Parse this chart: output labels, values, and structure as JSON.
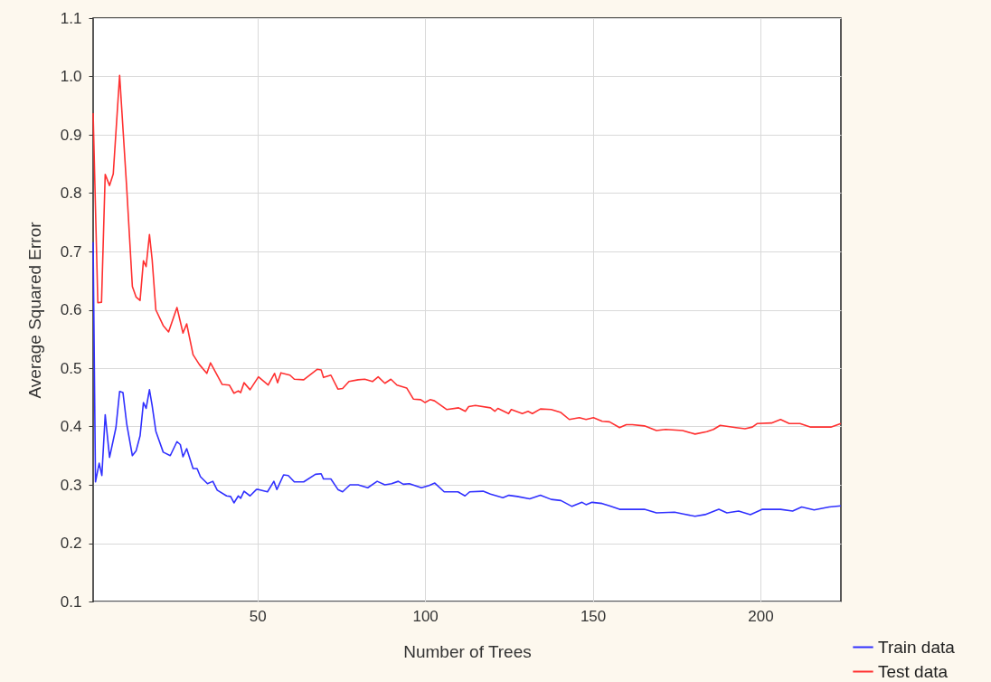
{
  "chart_data": {
    "type": "line",
    "xlabel": "Number of Trees",
    "ylabel": "Average Squared Error",
    "xlim": [
      1,
      224
    ],
    "xticks": [
      50,
      100,
      150,
      200
    ],
    "ylim": [
      0.1,
      1.1
    ],
    "yticks": [
      0.1,
      0.2,
      0.3,
      0.4,
      0.5,
      0.6,
      0.7,
      0.8,
      0.9,
      {
        "value": 1,
        "label": "1.0"
      },
      1.1
    ],
    "grid": true,
    "legend": "bottom right",
    "line_style": "solid",
    "series": [
      {
        "name": "Train data",
        "color": "#3030ff",
        "x": [
          1,
          1.7,
          2.8,
          3.6,
          4.6,
          5.9,
          7.8,
          8.9,
          9.9,
          11,
          12.7,
          13.8,
          15,
          16,
          16.8,
          17.8,
          18.6,
          19.7,
          20.6,
          21.9,
          24,
          26,
          27,
          27.8,
          28.9,
          30.8,
          32,
          33,
          35.1,
          36.7,
          38,
          40.8,
          42,
          43,
          44.3,
          45,
          46,
          47.8,
          49.7,
          50.3,
          53,
          54.9,
          55.8,
          57.8,
          59.2,
          61,
          63.8,
          67.3,
          69,
          69.7,
          71.9,
          74,
          75.4,
          77.6,
          80,
          82.9,
          85.7,
          88,
          90,
          92,
          93.5,
          95.3,
          98.9,
          101.2,
          102.9,
          105.7,
          109.8,
          111.9,
          113.3,
          117.3,
          119.5,
          123.2,
          125,
          127.5,
          131.2,
          134.4,
          137.6,
          140.5,
          143.8,
          146.8,
          148,
          149.8,
          152.8,
          155,
          158,
          161.8,
          165.4,
          169,
          174.4,
          177,
          180.5,
          183.5,
          187.6,
          190,
          193.5,
          197,
          200.6,
          206,
          209.6,
          212.3,
          216,
          220.5,
          224
        ],
        "values": [
          0.716,
          0.305,
          0.337,
          0.316,
          0.42,
          0.347,
          0.398,
          0.46,
          0.458,
          0.405,
          0.35,
          0.358,
          0.384,
          0.441,
          0.431,
          0.463,
          0.436,
          0.392,
          0.377,
          0.356,
          0.35,
          0.374,
          0.369,
          0.348,
          0.362,
          0.328,
          0.328,
          0.314,
          0.302,
          0.306,
          0.291,
          0.281,
          0.28,
          0.269,
          0.281,
          0.277,
          0.289,
          0.281,
          0.292,
          0.292,
          0.288,
          0.306,
          0.292,
          0.317,
          0.316,
          0.305,
          0.305,
          0.318,
          0.319,
          0.31,
          0.31,
          0.292,
          0.288,
          0.3,
          0.3,
          0.295,
          0.306,
          0.3,
          0.302,
          0.306,
          0.301,
          0.302,
          0.295,
          0.299,
          0.303,
          0.288,
          0.288,
          0.281,
          0.288,
          0.289,
          0.284,
          0.278,
          0.282,
          0.28,
          0.276,
          0.282,
          0.275,
          0.273,
          0.263,
          0.27,
          0.266,
          0.27,
          0.268,
          0.264,
          0.258,
          0.258,
          0.258,
          0.252,
          0.253,
          0.25,
          0.246,
          0.249,
          0.258,
          0.252,
          0.255,
          0.249,
          0.258,
          0.258,
          0.255,
          0.262,
          0.257,
          0.262,
          0.264
        ]
      },
      {
        "name": "Test data",
        "color": "#ff3030",
        "x": [
          1,
          2.4,
          3.5,
          4.6,
          5.9,
          7,
          8.9,
          11,
          12.7,
          13.8,
          15,
          16,
          16.8,
          17.8,
          18.6,
          19.7,
          21.9,
          23.5,
          26,
          27.8,
          28.9,
          30.8,
          32.7,
          34.9,
          36,
          39.5,
          41.6,
          43,
          44.3,
          45,
          46,
          47.8,
          50.3,
          53.2,
          55.1,
          56,
          57,
          59.7,
          61,
          63.8,
          67.8,
          69,
          69.7,
          71.9,
          74,
          75.4,
          77.3,
          80,
          82,
          84.3,
          86,
          88,
          89.8,
          91.6,
          94.5,
          96.5,
          98.7,
          100,
          101.5,
          102.8,
          106.5,
          110,
          112,
          113,
          115,
          119.5,
          120.8,
          121.7,
          124.9,
          125.7,
          129,
          130.7,
          132,
          134.4,
          137.6,
          140.5,
          143,
          146,
          148,
          150.2,
          152.8,
          155,
          158,
          160,
          161.8,
          165.4,
          169,
          171.7,
          176.8,
          180.5,
          184,
          186,
          188,
          192.7,
          195.4,
          197.6,
          199,
          203.3,
          206,
          208.6,
          211.8,
          215,
          221,
          224
        ],
        "values": [
          0.937,
          0.612,
          0.613,
          0.832,
          0.813,
          0.833,
          1.002,
          0.81,
          0.64,
          0.622,
          0.616,
          0.684,
          0.674,
          0.729,
          0.686,
          0.6,
          0.573,
          0.562,
          0.604,
          0.56,
          0.576,
          0.523,
          0.506,
          0.491,
          0.509,
          0.472,
          0.471,
          0.457,
          0.461,
          0.458,
          0.475,
          0.463,
          0.485,
          0.471,
          0.491,
          0.475,
          0.492,
          0.488,
          0.481,
          0.48,
          0.498,
          0.497,
          0.484,
          0.488,
          0.464,
          0.465,
          0.477,
          0.48,
          0.481,
          0.477,
          0.485,
          0.474,
          0.481,
          0.471,
          0.466,
          0.447,
          0.446,
          0.441,
          0.446,
          0.444,
          0.429,
          0.432,
          0.426,
          0.434,
          0.436,
          0.432,
          0.426,
          0.431,
          0.422,
          0.429,
          0.422,
          0.426,
          0.422,
          0.43,
          0.429,
          0.424,
          0.412,
          0.415,
          0.412,
          0.415,
          0.409,
          0.408,
          0.398,
          0.403,
          0.403,
          0.401,
          0.393,
          0.395,
          0.393,
          0.387,
          0.391,
          0.395,
          0.402,
          0.398,
          0.396,
          0.399,
          0.405,
          0.406,
          0.412,
          0.405,
          0.405,
          0.399,
          0.399,
          0.405
        ]
      }
    ]
  }
}
